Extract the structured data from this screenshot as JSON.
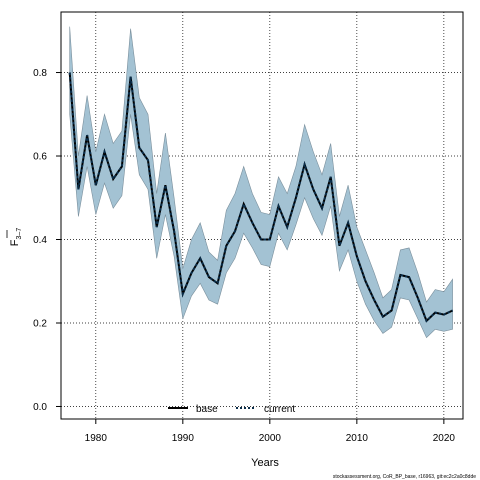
{
  "chart_data": {
    "type": "line",
    "title": "",
    "xlabel": "Years",
    "ylabel_main": "F",
    "ylabel_sub": "3–7",
    "xlim": [
      1976,
      2022.2
    ],
    "ylim": [
      -0.03,
      0.945
    ],
    "xticks": [
      1980,
      1990,
      2000,
      2010,
      2020
    ],
    "yticks": [
      0.0,
      0.2,
      0.4,
      0.6,
      0.8
    ],
    "xtick_labels": [
      "1980",
      "1990",
      "2000",
      "2010",
      "2020"
    ],
    "ytick_labels": [
      "0.0",
      "0.2",
      "0.4",
      "0.6",
      "0.8"
    ],
    "grid": true,
    "grid_style": "dotted",
    "legend": {
      "position": "bottom-center",
      "entries": [
        {
          "label": "base",
          "style": "solid"
        },
        {
          "label": "current",
          "style": "dotted"
        }
      ]
    },
    "band_color": "#a3c2d3",
    "line_color": "#0b2e4a",
    "x": [
      1977,
      1978,
      1979,
      1980,
      1981,
      1982,
      1983,
      1984,
      1985,
      1986,
      1987,
      1988,
      1989,
      1990,
      1991,
      1992,
      1993,
      1994,
      1995,
      1996,
      1997,
      1998,
      1999,
      2000,
      2001,
      2002,
      2003,
      2004,
      2005,
      2006,
      2007,
      2008,
      2009,
      2010,
      2011,
      2012,
      2013,
      2014,
      2015,
      2016,
      2017,
      2018,
      2019,
      2020,
      2021
    ],
    "series": [
      {
        "name": "base",
        "values": [
          0.8,
          0.52,
          0.65,
          0.53,
          0.61,
          0.545,
          0.575,
          0.79,
          0.62,
          0.59,
          0.43,
          0.53,
          0.42,
          0.27,
          0.32,
          0.355,
          0.31,
          0.295,
          0.385,
          0.42,
          0.485,
          0.44,
          0.4,
          0.4,
          0.48,
          0.43,
          0.5,
          0.58,
          0.52,
          0.475,
          0.55,
          0.385,
          0.44,
          0.36,
          0.3,
          0.255,
          0.215,
          0.23,
          0.315,
          0.31,
          0.26,
          0.205,
          0.225,
          0.22,
          0.23
        ]
      },
      {
        "name": "current",
        "values": [
          0.8,
          0.52,
          0.65,
          0.53,
          0.61,
          0.545,
          0.575,
          0.79,
          0.62,
          0.59,
          0.43,
          0.53,
          0.42,
          0.27,
          0.32,
          0.355,
          0.31,
          0.295,
          0.385,
          0.42,
          0.485,
          0.44,
          0.4,
          0.4,
          0.48,
          0.43,
          0.5,
          0.58,
          0.52,
          0.475,
          0.55,
          0.385,
          0.44,
          0.36,
          0.3,
          0.255,
          0.215,
          0.23,
          0.315,
          0.31,
          0.26,
          0.205,
          0.225,
          0.22,
          0.23
        ]
      }
    ],
    "band_upper": [
      0.91,
      0.6,
      0.745,
      0.61,
      0.7,
      0.63,
      0.66,
      0.905,
      0.74,
      0.7,
      0.51,
      0.655,
      0.5,
      0.33,
      0.4,
      0.44,
      0.37,
      0.35,
      0.47,
      0.51,
      0.575,
      0.51,
      0.465,
      0.46,
      0.55,
      0.51,
      0.575,
      0.675,
      0.61,
      0.555,
      0.63,
      0.455,
      0.53,
      0.43,
      0.375,
      0.32,
      0.26,
      0.28,
      0.375,
      0.38,
      0.32,
      0.25,
      0.28,
      0.275,
      0.305
    ],
    "band_lower": [
      0.7,
      0.455,
      0.575,
      0.46,
      0.535,
      0.475,
      0.505,
      0.7,
      0.555,
      0.52,
      0.355,
      0.46,
      0.36,
      0.21,
      0.265,
      0.295,
      0.255,
      0.245,
      0.32,
      0.355,
      0.415,
      0.38,
      0.34,
      0.335,
      0.415,
      0.375,
      0.435,
      0.5,
      0.45,
      0.41,
      0.48,
      0.325,
      0.375,
      0.3,
      0.245,
      0.205,
      0.175,
      0.19,
      0.26,
      0.255,
      0.21,
      0.165,
      0.185,
      0.18,
      0.185
    ]
  },
  "footer": "stockassessment.org, CoR_BP_base, r16963, git:ec2c2a0c8dde"
}
